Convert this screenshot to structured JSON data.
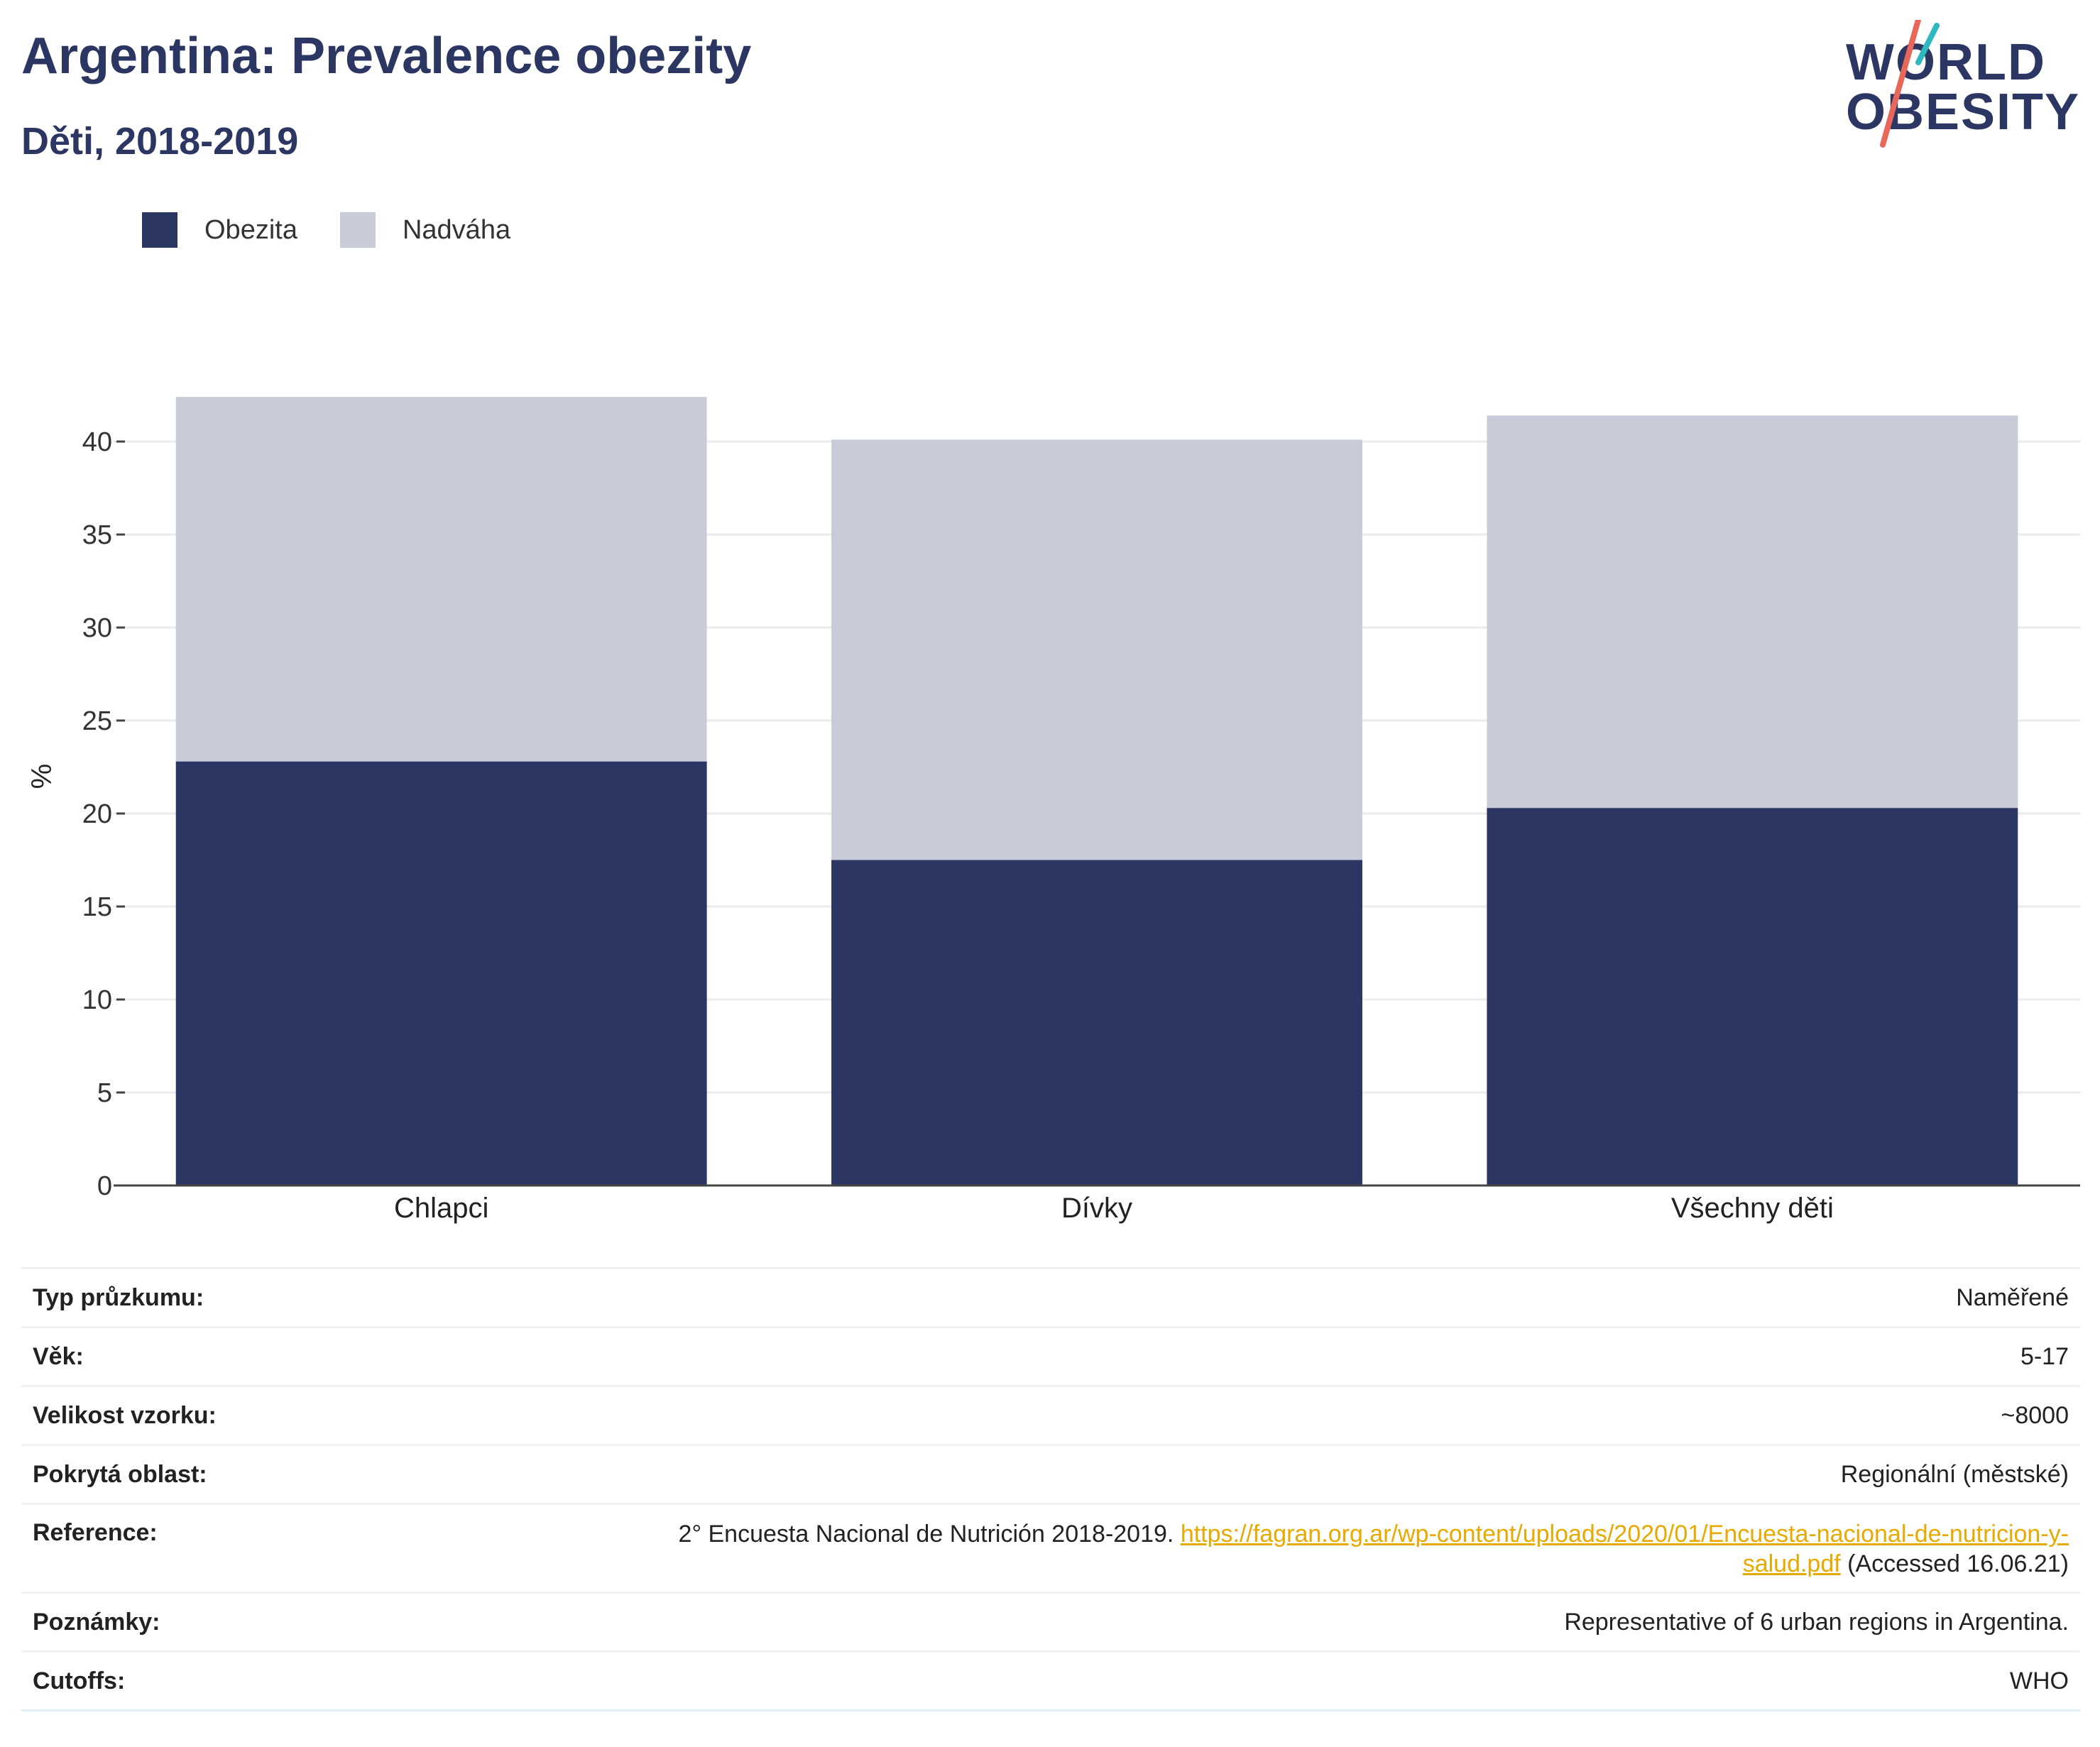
{
  "header": {
    "title": "Argentina: Prevalence obezity",
    "subtitle": "Děti, 2018-2019"
  },
  "logo": {
    "line1": "WORLD",
    "line2": "OBESITY",
    "accent_top": "#2fb8c0",
    "accent_bottom": "#e8675a",
    "text_color": "#2b3663"
  },
  "chart_data": {
    "type": "bar",
    "stacked": true,
    "categories": [
      "Chlapci",
      "Dívky",
      "Všechny děti"
    ],
    "series": [
      {
        "name": "Obezita",
        "values": [
          22.8,
          17.5,
          20.3
        ],
        "color": "#2b3663"
      },
      {
        "name": "Nadváha",
        "values": [
          19.6,
          22.6,
          21.1
        ],
        "color": "#c9ccd8"
      }
    ],
    "ylabel": "%",
    "xlabel": "",
    "ylim": [
      0,
      45
    ],
    "yticks": [
      0,
      5,
      10,
      15,
      20,
      25,
      30,
      35,
      40
    ],
    "grid": true,
    "legend_position": "top-left"
  },
  "info": {
    "rows": [
      {
        "key": "Typ průzkumu:",
        "value": "Naměřené"
      },
      {
        "key": "Věk:",
        "value": "5-17"
      },
      {
        "key": "Velikost vzorku:",
        "value": "~8000"
      },
      {
        "key": "Pokrytá oblast:",
        "value": "Regionální (městské)"
      }
    ],
    "reference": {
      "key": "Reference:",
      "text_before": "2° Encuesta Nacional de Nutrición 2018-2019.",
      "link_line1": "https://fagran.org.ar/wp-content/uploads/2020/01/Encuesta-nacional-de-nutricion-y-",
      "link_line2": "salud.pdf",
      "text_after": "(Accessed 16.06.21)"
    },
    "rows2": [
      {
        "key": "Poznámky:",
        "value": "Representative of 6 urban regions in Argentina."
      },
      {
        "key": "Cutoffs:",
        "value": "WHO"
      }
    ]
  }
}
